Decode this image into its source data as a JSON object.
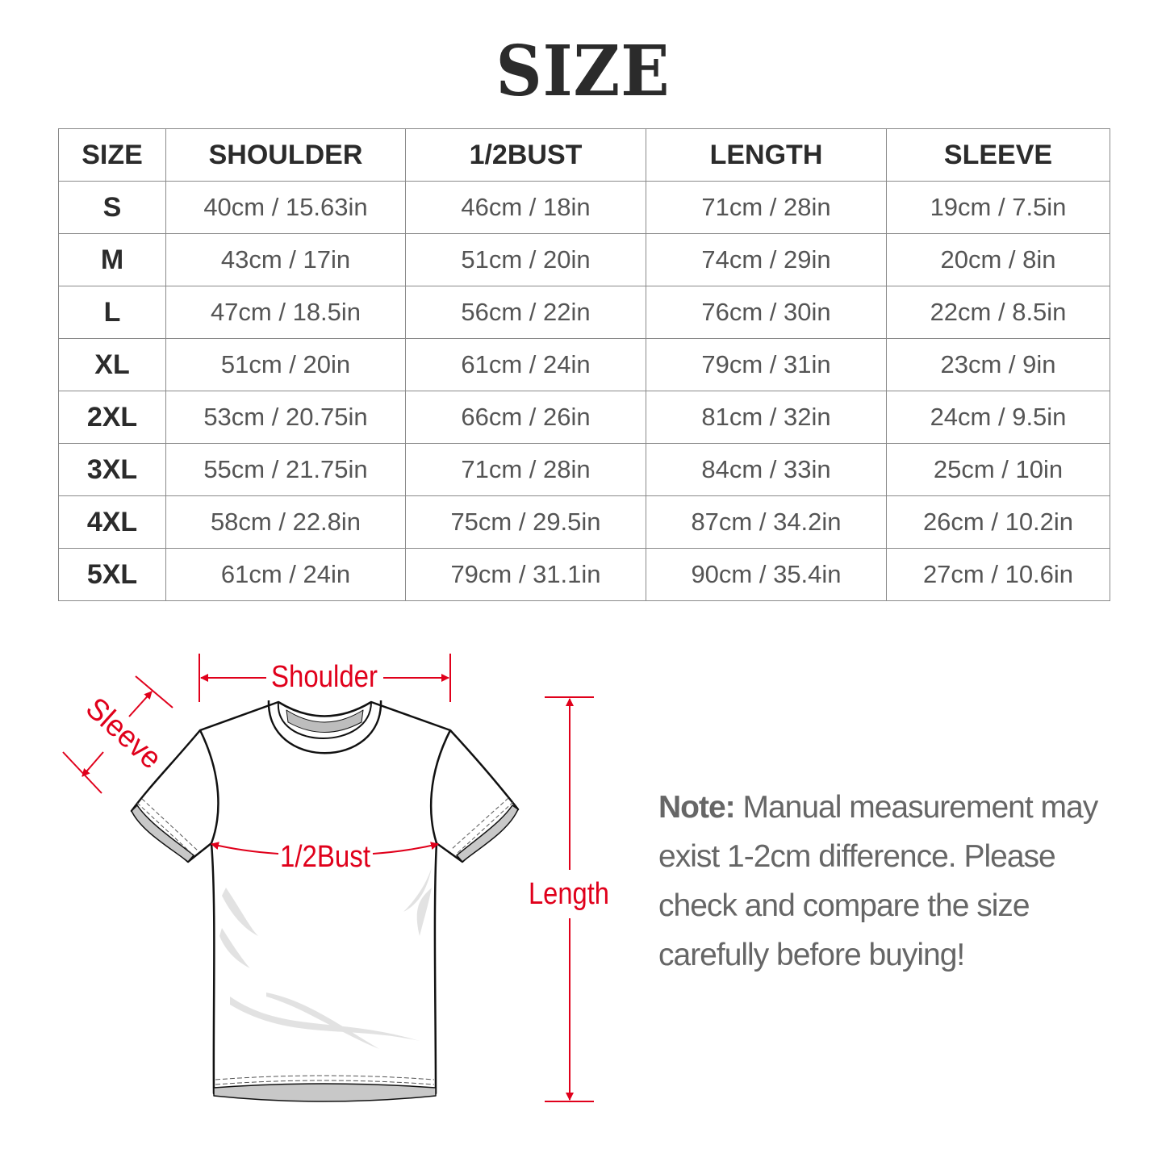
{
  "title": "SIZE",
  "table": {
    "headers": [
      "SIZE",
      "SHOULDER",
      "1/2BUST",
      "LENGTH",
      "SLEEVE"
    ],
    "rows": [
      [
        "S",
        "40cm / 15.63in",
        "46cm / 18in",
        "71cm / 28in",
        "19cm / 7.5in"
      ],
      [
        "M",
        "43cm / 17in",
        "51cm / 20in",
        "74cm / 29in",
        "20cm / 8in"
      ],
      [
        "L",
        "47cm / 18.5in",
        "56cm / 22in",
        "76cm / 30in",
        "22cm / 8.5in"
      ],
      [
        "XL",
        "51cm / 20in",
        "61cm / 24in",
        "79cm / 31in",
        "23cm / 9in"
      ],
      [
        "2XL",
        "53cm / 20.75in",
        "66cm / 26in",
        "81cm / 32in",
        "24cm / 9.5in"
      ],
      [
        "3XL",
        "55cm / 21.75in",
        "71cm / 28in",
        "84cm / 33in",
        "25cm / 10in"
      ],
      [
        "4XL",
        "58cm / 22.8in",
        "75cm / 29.5in",
        "87cm / 34.2in",
        "26cm / 10.2in"
      ],
      [
        "5XL",
        "61cm / 24in",
        "79cm / 31.1in",
        "90cm / 35.4in",
        "27cm / 10.6in"
      ]
    ]
  },
  "diagram": {
    "labels": {
      "shoulder": "Shoulder",
      "sleeve": "Sleeve",
      "bust": "1/2Bust",
      "length": "Length"
    },
    "accent_color": "#e0001b"
  },
  "note": {
    "label": "Note:",
    "text": "Manual measurement may exist 1-2cm difference. Please check and compare the size carefully before buying!"
  }
}
